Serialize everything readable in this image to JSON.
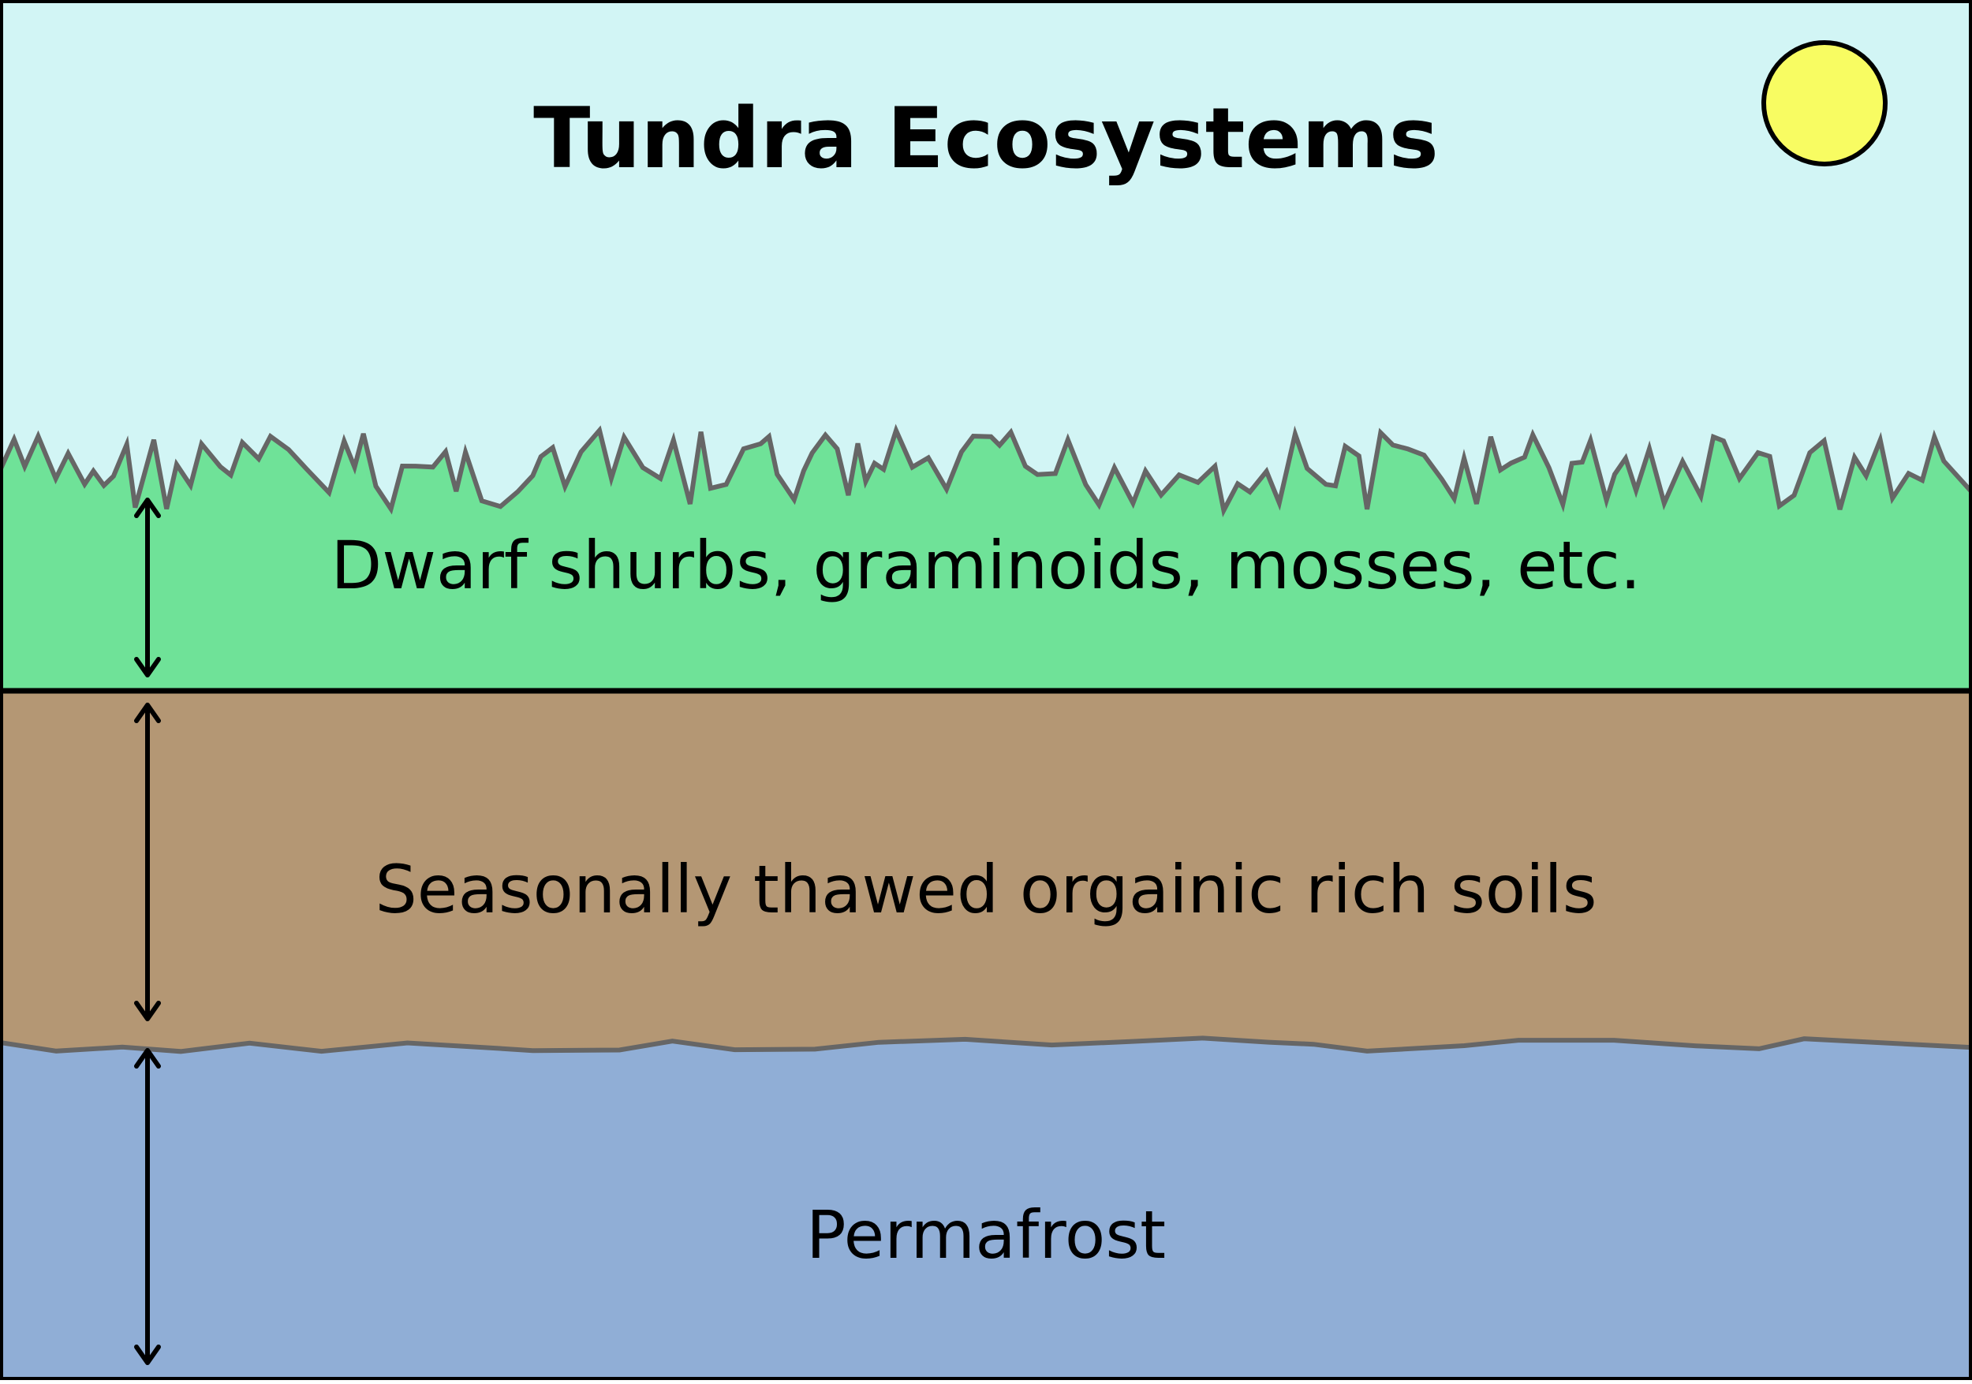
{
  "title": "Tundra Ecosystems",
  "layers": [
    {
      "id": "vegetation",
      "label": "Dwarf shurbs, graminoids, mosses, etc.",
      "color": "#6fe298"
    },
    {
      "id": "active-layer",
      "label": "Seasonally thawed orgainic rich soils",
      "color": "#b49774"
    },
    {
      "id": "permafrost",
      "label": "Permafrost",
      "color": "#90aed6"
    }
  ],
  "colors": {
    "sky": "#d2f5f5",
    "sun_fill": "#f8fc62",
    "outline": "#000000",
    "grass_stroke": "#666666"
  },
  "icons": [
    "sun-icon",
    "double-arrow-icon"
  ]
}
